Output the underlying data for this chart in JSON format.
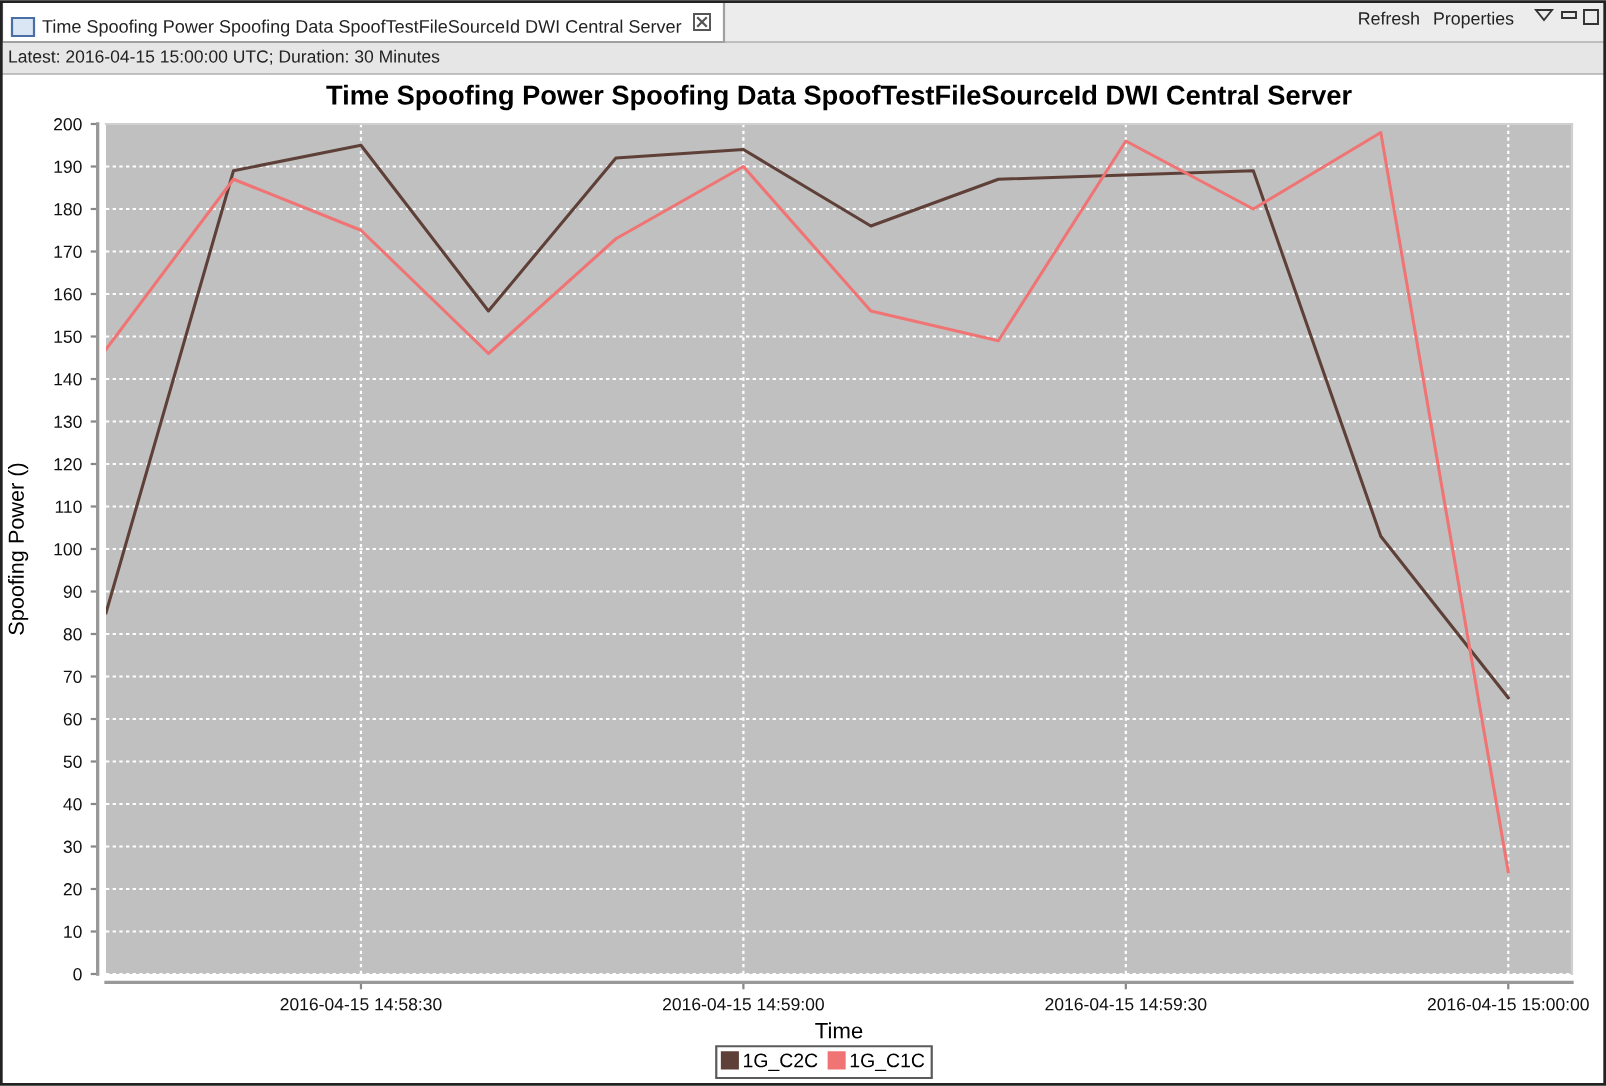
{
  "chart_data": {
    "type": "line",
    "title": "Time Spoofing Power Spoofing Data SpoofTestFileSourceId DWI Central Server",
    "xlabel": "Time",
    "ylabel": "Spoofing Power ()",
    "annotations": [
      "Time Spoofing Power Spoofing Data SpoofTestFileSourceId DWI Central Server",
      "Refresh",
      "Properties",
      "Latest: 2016-04-15 15:00:00 UTC; Duration: 30 Minutes"
    ],
    "x": [
      "2016-04-15T14:58:10",
      "2016-04-15T14:58:20",
      "2016-04-15T14:58:30",
      "2016-04-15T14:58:40",
      "2016-04-15T14:58:50",
      "2016-04-15T14:59:00",
      "2016-04-15T14:59:10",
      "2016-04-15T14:59:20",
      "2016-04-15T14:59:30",
      "2016-04-15T14:59:40",
      "2016-04-15T14:59:50",
      "2016-04-15T15:00:00"
    ],
    "series": [
      {
        "name": "1G_C2C",
        "color": "#5e4038",
        "values": [
          85,
          189,
          195,
          156,
          192,
          194,
          176,
          187,
          188,
          189,
          103,
          65
        ]
      },
      {
        "name": "1G_C1C",
        "color": "#f07474",
        "values": [
          147,
          187,
          175,
          146,
          173,
          190,
          156,
          149,
          196,
          180,
          198,
          24
        ]
      }
    ],
    "xlim": [
      "2016-04-15T14:58:10",
      "2016-04-15T15:00:05"
    ],
    "xticks": [
      {
        "value": "2016-04-15T14:58:30",
        "label": "2016-04-15 14:58:30"
      },
      {
        "value": "2016-04-15T14:59:00",
        "label": "2016-04-15 14:59:00"
      },
      {
        "value": "2016-04-15T14:59:30",
        "label": "2016-04-15 14:59:30"
      },
      {
        "value": "2016-04-15T15:00:00",
        "label": "2016-04-15 15:00:00"
      }
    ],
    "ylim": [
      0,
      200
    ],
    "yticks": [
      0,
      10,
      20,
      30,
      40,
      50,
      60,
      70,
      80,
      90,
      100,
      110,
      120,
      130,
      140,
      150,
      160,
      170,
      180,
      190,
      200
    ],
    "grid": true,
    "legend": "bottom",
    "marker": "none",
    "line_style": "solid"
  }
}
